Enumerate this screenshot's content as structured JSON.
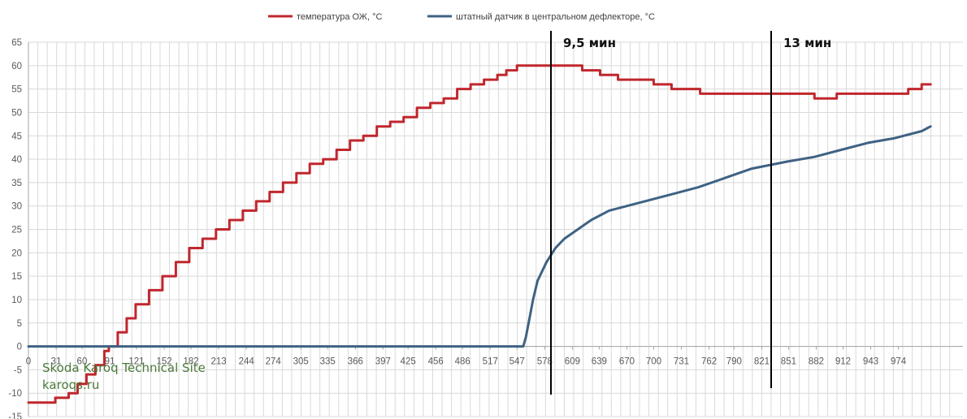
{
  "colors": {
    "coolant": "#c0272d",
    "sensor": "#3f6284",
    "grid": "#d9d9d9",
    "marker": "#000000"
  },
  "legend": [
    {
      "label": "температура ОЖ, °С",
      "color": "#c0272d"
    },
    {
      "label": "штатный датчик в центральном дефлекторе, °С",
      "color": "#3f6284"
    }
  ],
  "markers": [
    {
      "label": "9,5 мин",
      "x": 558
    },
    {
      "label": "13 мин",
      "x": 803
    }
  ],
  "watermark": {
    "title": "Skoda Karoq Technical Site",
    "url": "karoqs.ru"
  },
  "chart_data": {
    "type": "line",
    "title": "",
    "xlabel": "",
    "ylabel": "",
    "xlim": [
      0,
      1000
    ],
    "ylim": [
      -15,
      65
    ],
    "x_ticks": [
      "0",
      "31",
      "60",
      "91",
      "121",
      "152",
      "182",
      "213",
      "244",
      "274",
      "305",
      "335",
      "366",
      "397",
      "425",
      "456",
      "486",
      "517",
      "547",
      "578",
      "609",
      "639",
      "670",
      "700",
      "731",
      "762",
      "790",
      "821",
      "851",
      "882",
      "912",
      "943",
      "974"
    ],
    "y_ticks": [
      "-15",
      "-10",
      "-5",
      "0",
      "5",
      "10",
      "15",
      "20",
      "25",
      "30",
      "35",
      "40",
      "45",
      "50",
      "55",
      "60",
      "65"
    ],
    "grid": true,
    "legend_position": "top-center",
    "series": [
      {
        "name": "температура ОЖ, °С",
        "color": "#c0272d",
        "step": true,
        "points": [
          [
            0,
            -12
          ],
          [
            20,
            -12
          ],
          [
            30,
            -11
          ],
          [
            45,
            -10
          ],
          [
            55,
            -8
          ],
          [
            65,
            -6
          ],
          [
            75,
            -4
          ],
          [
            85,
            -1
          ],
          [
            90,
            0
          ],
          [
            100,
            3
          ],
          [
            110,
            6
          ],
          [
            120,
            9
          ],
          [
            135,
            12
          ],
          [
            150,
            15
          ],
          [
            165,
            18
          ],
          [
            180,
            21
          ],
          [
            195,
            23
          ],
          [
            210,
            25
          ],
          [
            225,
            27
          ],
          [
            240,
            29
          ],
          [
            255,
            31
          ],
          [
            270,
            33
          ],
          [
            285,
            35
          ],
          [
            300,
            37
          ],
          [
            315,
            39
          ],
          [
            330,
            40
          ],
          [
            345,
            42
          ],
          [
            360,
            44
          ],
          [
            375,
            45
          ],
          [
            390,
            47
          ],
          [
            405,
            48
          ],
          [
            420,
            49
          ],
          [
            435,
            51
          ],
          [
            450,
            52
          ],
          [
            465,
            53
          ],
          [
            480,
            55
          ],
          [
            495,
            56
          ],
          [
            510,
            57
          ],
          [
            525,
            58
          ],
          [
            535,
            59
          ],
          [
            547,
            60
          ],
          [
            610,
            60
          ],
          [
            620,
            59
          ],
          [
            640,
            58
          ],
          [
            660,
            57
          ],
          [
            700,
            56
          ],
          [
            720,
            55
          ],
          [
            752,
            54
          ],
          [
            870,
            54
          ],
          [
            880,
            53
          ],
          [
            900,
            53
          ],
          [
            905,
            54
          ],
          [
            982,
            54
          ],
          [
            985,
            55
          ],
          [
            1000,
            56
          ],
          [
            1010,
            56
          ]
        ]
      },
      {
        "name": "штатный датчик в центральном дефлекторе, °С",
        "color": "#3f6284",
        "step": false,
        "points": [
          [
            0,
            0
          ],
          [
            554,
            0
          ],
          [
            557,
            2
          ],
          [
            560,
            5
          ],
          [
            565,
            10
          ],
          [
            570,
            14
          ],
          [
            580,
            18
          ],
          [
            590,
            21
          ],
          [
            600,
            23
          ],
          [
            615,
            25
          ],
          [
            630,
            27
          ],
          [
            650,
            29
          ],
          [
            670,
            30
          ],
          [
            690,
            31
          ],
          [
            720,
            32.5
          ],
          [
            750,
            34
          ],
          [
            780,
            36
          ],
          [
            810,
            38
          ],
          [
            850,
            39.5
          ],
          [
            880,
            40.5
          ],
          [
            910,
            42
          ],
          [
            940,
            43.5
          ],
          [
            970,
            44.5
          ],
          [
            1000,
            46
          ],
          [
            1010,
            47
          ]
        ]
      }
    ]
  }
}
